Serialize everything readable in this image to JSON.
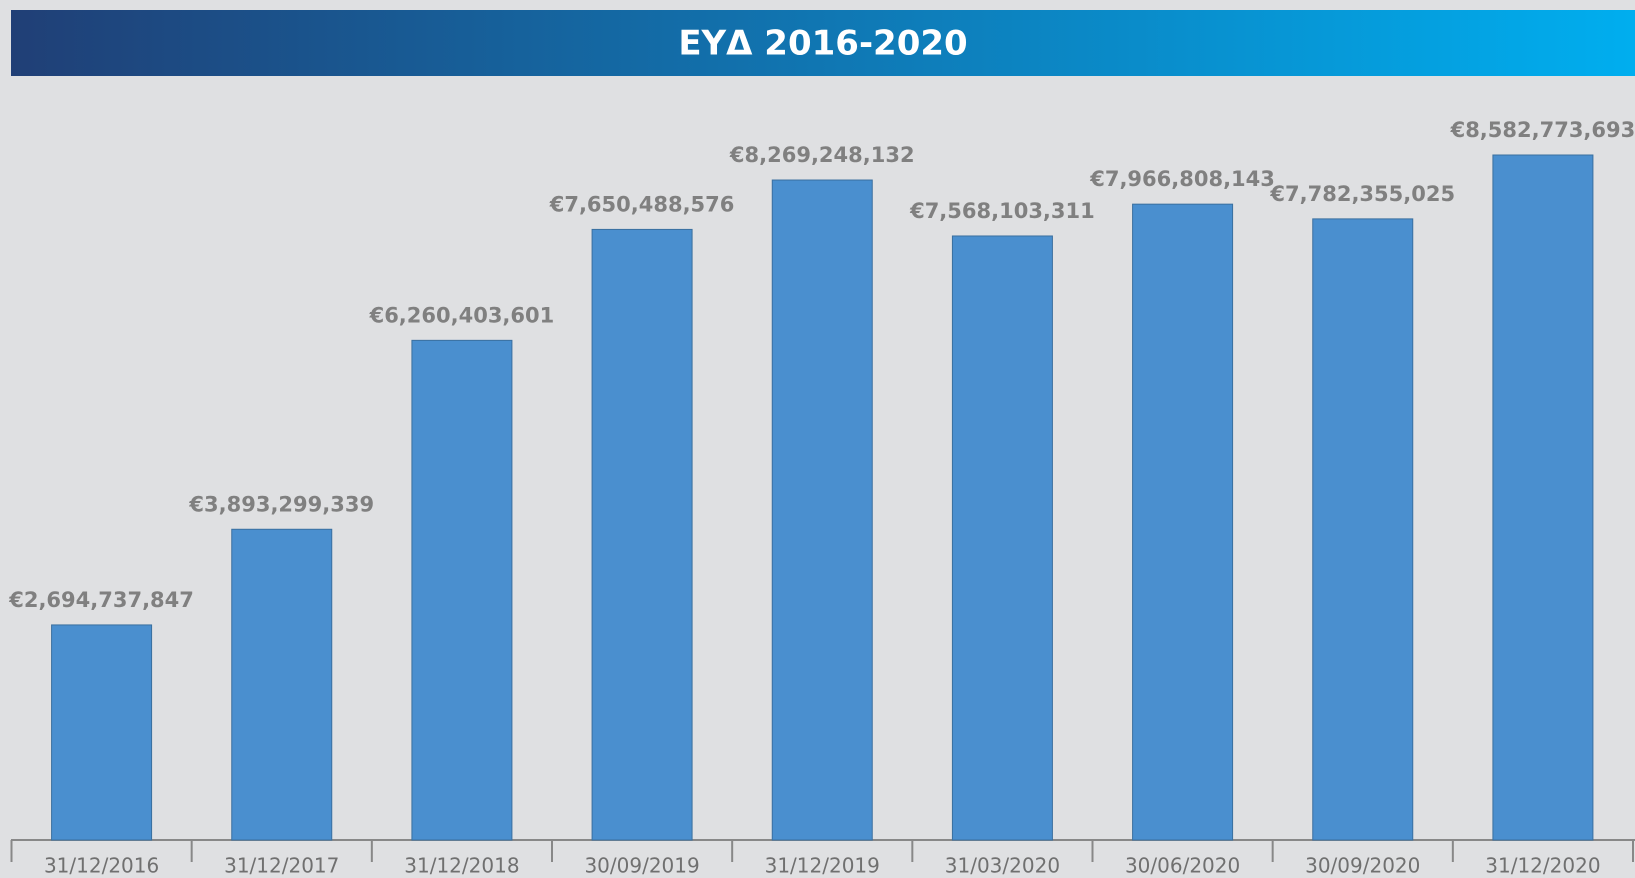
{
  "chart_data": {
    "type": "bar",
    "title": "ΕΥΔ 2016-2020",
    "categories": [
      "31/12/2016",
      "31/12/2017",
      "31/12/2018",
      "30/09/2019",
      "31/12/2019",
      "31/03/2020",
      "30/06/2020",
      "30/09/2020",
      "31/12/2020"
    ],
    "values": [
      2694737847,
      3893299339,
      6260403601,
      7650488576,
      8269248132,
      7568103311,
      7966808143,
      7782355025,
      8582773693
    ],
    "value_labels": [
      "€2,694,737,847",
      "€3,893,299,339",
      "€6,260,403,601",
      "€7,650,488,576",
      "€8,269,248,132",
      "€7,568,103,311",
      "€7,966,808,143",
      "€7,782,355,025",
      "€8,582,773,693"
    ],
    "color": "#4a8fcf"
  }
}
